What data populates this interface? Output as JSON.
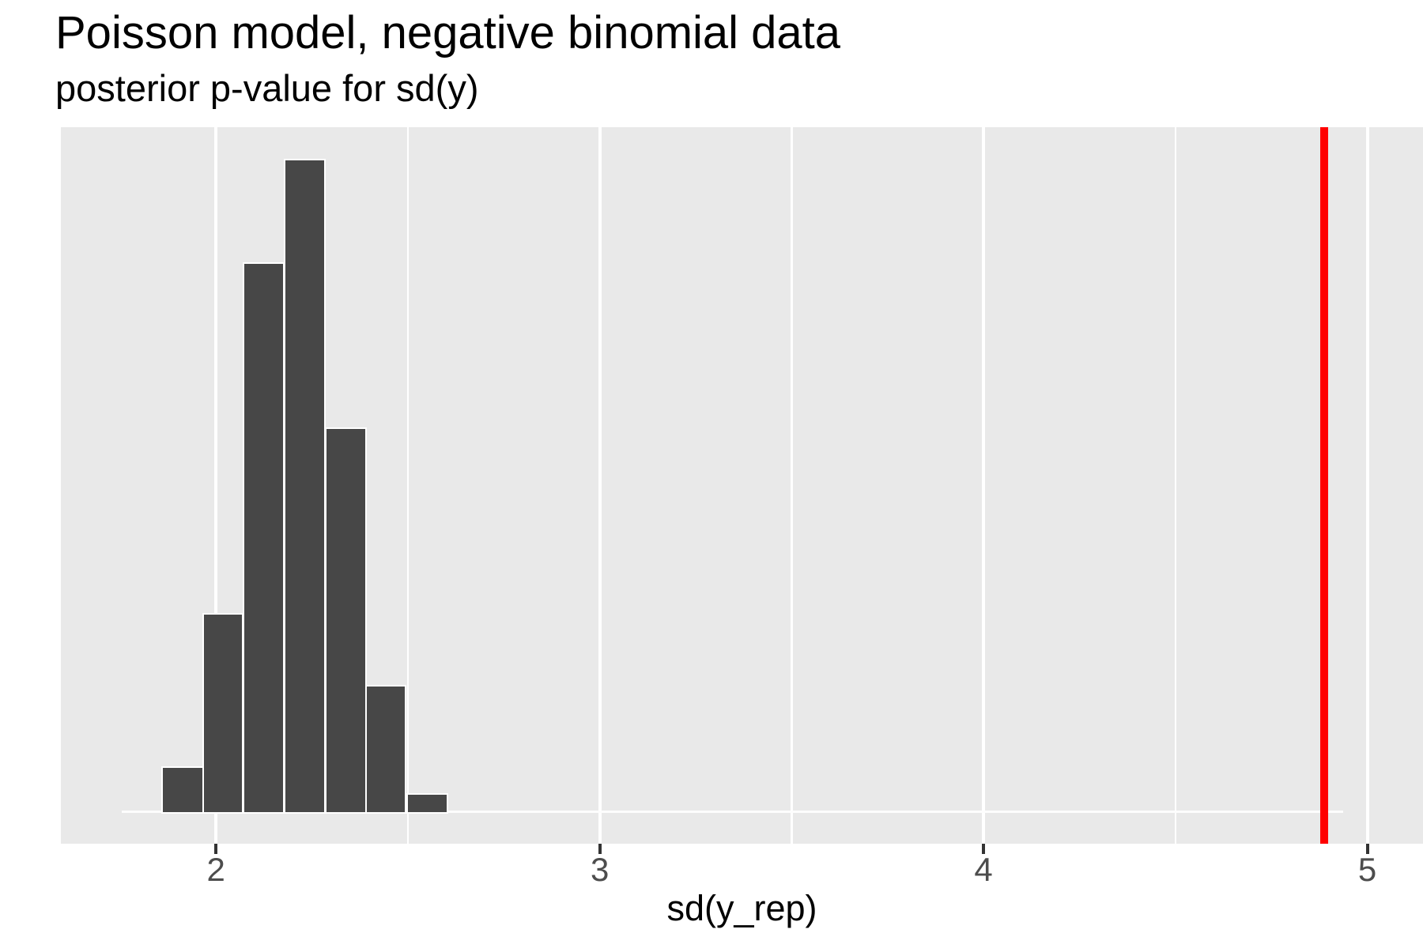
{
  "chart_data": {
    "type": "histogram",
    "title": "Poisson model, negative binomial data",
    "subtitle": "posterior p-value for sd(y)",
    "xlabel": "sd(y_rep)",
    "x_axis": {
      "range": [
        1.596,
        5.145
      ],
      "major_ticks": [
        2,
        3,
        4,
        5
      ],
      "tick_labels": [
        "2",
        "3",
        "4",
        "5"
      ],
      "minor_ticks": [
        2.5,
        3.5,
        4.5
      ]
    },
    "y_axis": {
      "shown": false,
      "baseline_frac": 0.9556,
      "max_bar_top_frac": 0.046
    },
    "grid": "vertical-only",
    "legend": null,
    "bars": [
      {
        "x0": 1.862,
        "x1": 1.964,
        "h": 0.067
      },
      {
        "x0": 1.968,
        "x1": 2.068,
        "h": 0.303
      },
      {
        "x0": 2.073,
        "x1": 2.175,
        "h": 0.841
      },
      {
        "x0": 2.181,
        "x1": 2.282,
        "h": 1.0
      },
      {
        "x0": 2.288,
        "x1": 2.389,
        "h": 0.588
      },
      {
        "x0": 2.394,
        "x1": 2.493,
        "h": 0.193
      },
      {
        "x0": 2.5,
        "x1": 2.601,
        "h": 0.026
      }
    ],
    "bin_width": 0.105,
    "observed_stat_line": {
      "value": 4.887
    },
    "baseline_segment": {
      "x0": 1.755,
      "x1": 4.937
    },
    "colors": {
      "panel_bg": "#E9E9E9",
      "bar_fill": "#474747",
      "bar_border": "#FFFFFF",
      "grid": "#FFFFFF",
      "baseline": "#FDFDFD",
      "tick_mark": "#333333",
      "tick_label": "#4D4D4D",
      "text": "#000000",
      "observed_line": "#FF0000"
    }
  }
}
